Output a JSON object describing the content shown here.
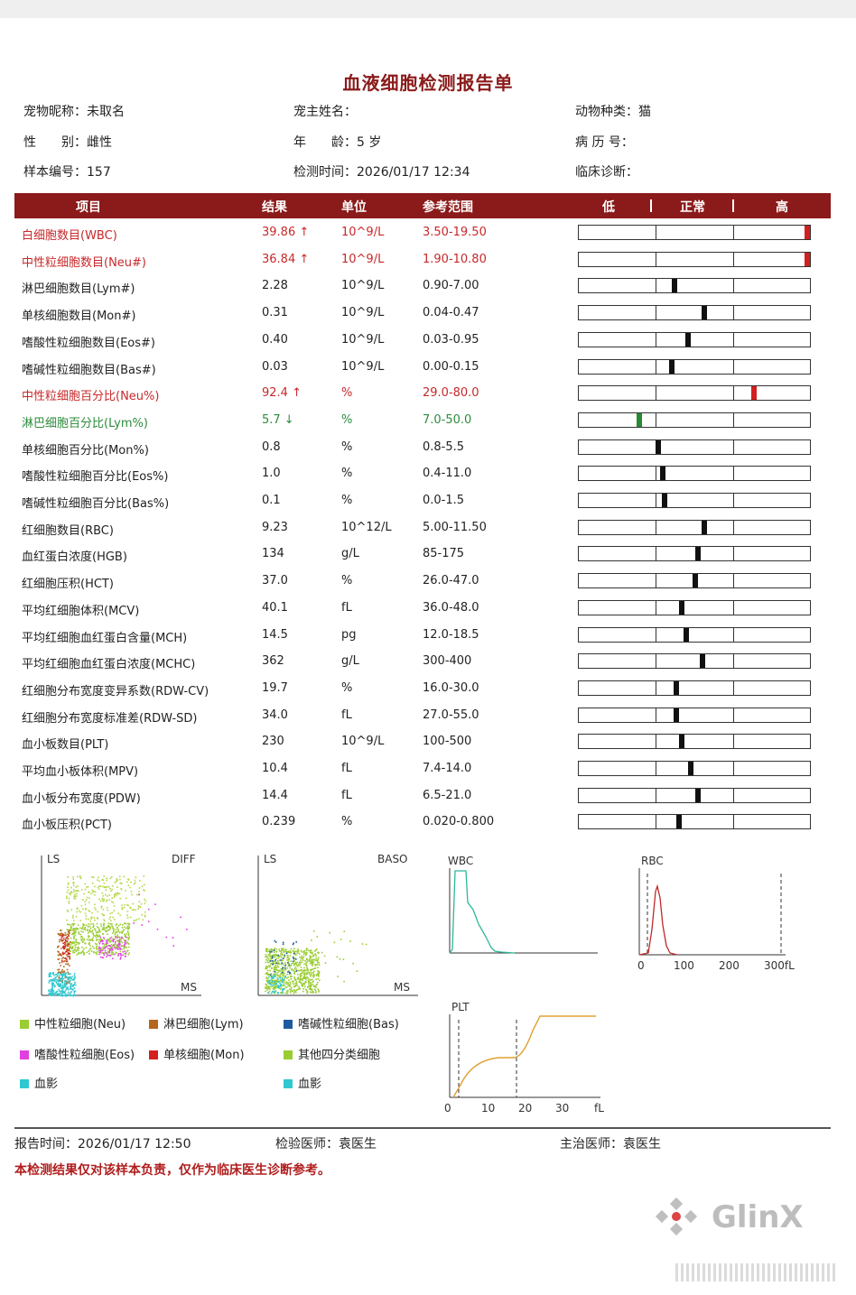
{
  "title": "血液细胞检测报告单",
  "info": {
    "pet_name_label": "宠物昵称：",
    "pet_name": "未取名",
    "owner_label": "宠主姓名：",
    "owner": "",
    "species_label": "动物种类：",
    "species": "猫",
    "sex_label": "性　　别：",
    "sex": "雌性",
    "age_label": "年　　龄：",
    "age": "5 岁",
    "record_label": "病 历 号：",
    "record": "",
    "sample_label": "样本编号：",
    "sample": "157",
    "test_time_label": "检测时间：",
    "test_time": "2026/01/17 12:34",
    "diagnosis_label": "临床诊断：",
    "diagnosis": ""
  },
  "table_header": {
    "item": "项目",
    "result": "结果",
    "unit": "单位",
    "range": "参考范围",
    "low": "低",
    "normal": "正常",
    "high": "高"
  },
  "rows": [
    {
      "name": "白细胞数目(WBC)",
      "result": "39.86 ↑",
      "unit": "10^9/L",
      "range": "3.50-19.50",
      "flag": "high",
      "pos": 0.98
    },
    {
      "name": "中性粒细胞数目(Neu#)",
      "result": "36.84 ↑",
      "unit": "10^9/L",
      "range": "1.90-10.80",
      "flag": "high",
      "pos": 0.98
    },
    {
      "name": "淋巴细胞数目(Lym#)",
      "result": "2.28",
      "unit": "10^9/L",
      "range": "0.90-7.00",
      "flag": "normal",
      "pos": 0.41
    },
    {
      "name": "单核细胞数目(Mon#)",
      "result": "0.31",
      "unit": "10^9/L",
      "range": "0.04-0.47",
      "flag": "normal",
      "pos": 0.54
    },
    {
      "name": "嗜酸性粒细胞数目(Eos#)",
      "result": "0.40",
      "unit": "10^9/L",
      "range": "0.03-0.95",
      "flag": "normal",
      "pos": 0.47
    },
    {
      "name": "嗜碱性粒细胞数目(Bas#)",
      "result": "0.03",
      "unit": "10^9/L",
      "range": "0.00-0.15",
      "flag": "normal",
      "pos": 0.4
    },
    {
      "name": "中性粒细胞百分比(Neu%)",
      "result": "92.4 ↑",
      "unit": "%",
      "range": "29.0-80.0",
      "flag": "high",
      "pos": 0.75
    },
    {
      "name": "淋巴细胞百分比(Lym%)",
      "result": "5.7 ↓",
      "unit": "%",
      "range": "7.0-50.0",
      "flag": "low",
      "pos": 0.26
    },
    {
      "name": "单核细胞百分比(Mon%)",
      "result": "0.8",
      "unit": "%",
      "range": "0.8-5.5",
      "flag": "normal",
      "pos": 0.34
    },
    {
      "name": "嗜酸性粒细胞百分比(Eos%)",
      "result": "1.0",
      "unit": "%",
      "range": "0.4-11.0",
      "flag": "normal",
      "pos": 0.36
    },
    {
      "name": "嗜碱性粒细胞百分比(Bas%)",
      "result": "0.1",
      "unit": "%",
      "range": "0.0-1.5",
      "flag": "normal",
      "pos": 0.37
    },
    {
      "name": "红细胞数目(RBC)",
      "result": "9.23",
      "unit": "10^12/L",
      "range": "5.00-11.50",
      "flag": "normal",
      "pos": 0.54
    },
    {
      "name": "血红蛋白浓度(HGB)",
      "result": "134",
      "unit": "g/L",
      "range": "85-175",
      "flag": "normal",
      "pos": 0.51
    },
    {
      "name": "红细胞压积(HCT)",
      "result": "37.0",
      "unit": "%",
      "range": "26.0-47.0",
      "flag": "normal",
      "pos": 0.5
    },
    {
      "name": "平均红细胞体积(MCV)",
      "result": "40.1",
      "unit": "fL",
      "range": "36.0-48.0",
      "flag": "normal",
      "pos": 0.44
    },
    {
      "name": "平均红细胞血红蛋白含量(MCH)",
      "result": "14.5",
      "unit": "pg",
      "range": "12.0-18.5",
      "flag": "normal",
      "pos": 0.46
    },
    {
      "name": "平均红细胞血红蛋白浓度(MCHC)",
      "result": "362",
      "unit": "g/L",
      "range": "300-400",
      "flag": "normal",
      "pos": 0.53
    },
    {
      "name": "红细胞分布宽度变异系数(RDW-CV)",
      "result": "19.7",
      "unit": "%",
      "range": "16.0-30.0",
      "flag": "normal",
      "pos": 0.42
    },
    {
      "name": "红细胞分布宽度标准差(RDW-SD)",
      "result": "34.0",
      "unit": "fL",
      "range": "27.0-55.0",
      "flag": "normal",
      "pos": 0.42
    },
    {
      "name": "血小板数目(PLT)",
      "result": "230",
      "unit": "10^9/L",
      "range": "100-500",
      "flag": "normal",
      "pos": 0.44
    },
    {
      "name": "平均血小板体积(MPV)",
      "result": "10.4",
      "unit": "fL",
      "range": "7.4-14.0",
      "flag": "normal",
      "pos": 0.48
    },
    {
      "name": "血小板分布宽度(PDW)",
      "result": "14.4",
      "unit": "fL",
      "range": "6.5-21.0",
      "flag": "normal",
      "pos": 0.51
    },
    {
      "name": "血小板压积(PCT)",
      "result": "0.239",
      "unit": "%",
      "range": "0.020-0.800",
      "flag": "normal",
      "pos": 0.43
    }
  ],
  "charts": {
    "diff": {
      "ylabel": "LS",
      "xlabel": "MS",
      "title": "DIFF"
    },
    "baso": {
      "ylabel": "LS",
      "xlabel": "MS",
      "title": "BASO"
    },
    "wbc": {
      "title": "WBC"
    },
    "rbc": {
      "title": "RBC",
      "ticks": [
        "0",
        "100",
        "200",
        "300fL"
      ]
    },
    "plt": {
      "title": "PLT",
      "ticks": [
        "0",
        "10",
        "20",
        "30",
        "fL"
      ]
    }
  },
  "legend_left": [
    {
      "label": "中性粒细胞(Neu)",
      "color": "#9acd32"
    },
    {
      "label": "淋巴细胞(Lym)",
      "color": "#b5651d"
    },
    {
      "label": "嗜酸性粒细胞(Eos)",
      "color": "#e040e0"
    },
    {
      "label": "单核细胞(Mon)",
      "color": "#d42020"
    },
    {
      "label": "血影",
      "color": "#30c8d0"
    }
  ],
  "legend_right": [
    {
      "label": "嗜碱性粒细胞(Bas)",
      "color": "#1e5aa0"
    },
    {
      "label": "其他四分类细胞",
      "color": "#9acd32"
    },
    {
      "label": "血影",
      "color": "#30c8d0"
    }
  ],
  "footer": {
    "report_time_label": "报告时间：",
    "report_time": "2026/01/17 12:50",
    "inspector_label": "检验医师：",
    "inspector": "袁医生",
    "doctor_label": "主治医师：",
    "doctor": "袁医生",
    "note": "本检测结果仅对该样本负责，仅作为临床医生诊断参考。"
  },
  "logo": {
    "text": "GlinX"
  },
  "colors": {
    "brand": "#8b1a1a",
    "high": "#c8282a",
    "low": "#2c8c3c"
  }
}
